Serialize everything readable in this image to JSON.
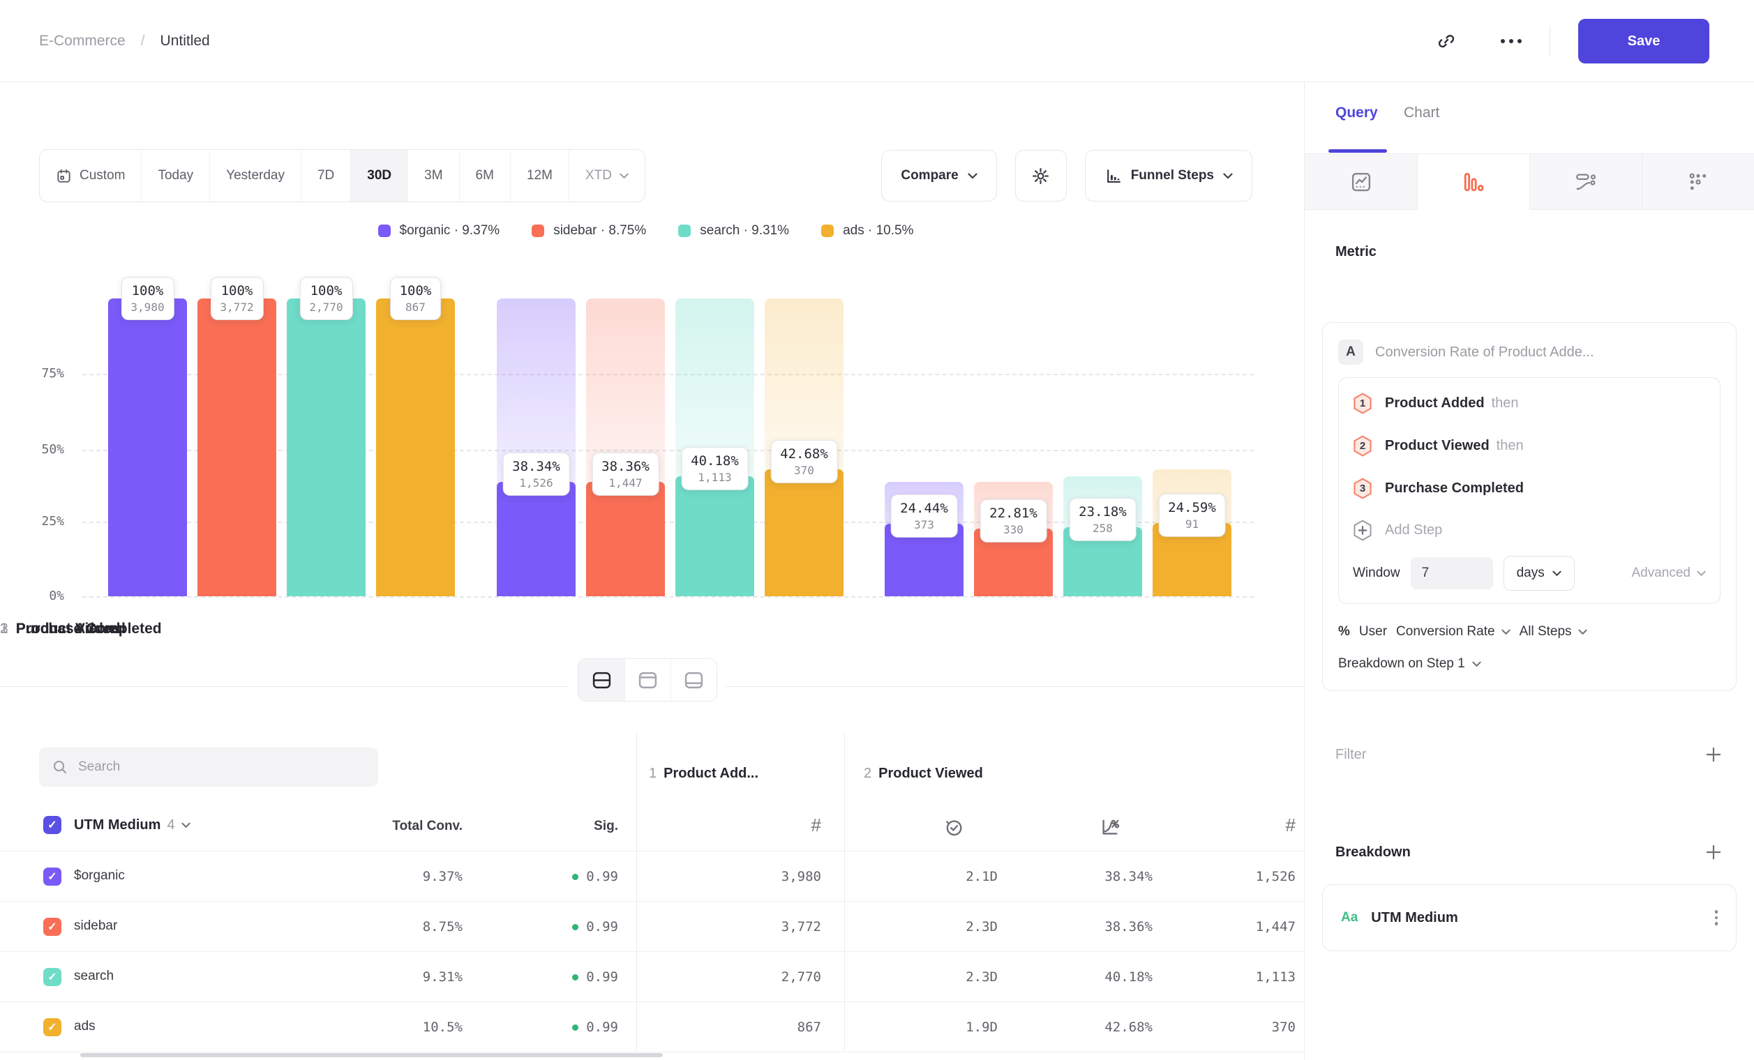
{
  "header": {
    "breadcrumb_parent": "E-Commerce",
    "breadcrumb_separator": "/",
    "breadcrumb_current": "Untitled",
    "save_label": "Save"
  },
  "toolbar": {
    "ranges": [
      "Custom",
      "Today",
      "Yesterday",
      "7D",
      "30D",
      "3M",
      "6M",
      "12M",
      "XTD"
    ],
    "selected_range": "30D",
    "compare_label": "Compare",
    "view_selector_label": "Funnel Steps"
  },
  "chart_data": {
    "type": "funnel_bar",
    "title": "",
    "y_axis": {
      "ticks": [
        "75%",
        "50%",
        "25%",
        "0%"
      ],
      "max_pct": 100,
      "gridlines": true
    },
    "series": [
      {
        "name": "$organic",
        "color": "#7A5AF8",
        "ghost": "rgba(122,90,248,0.30)",
        "legend": "$organic · 9.37%",
        "overall_conversion_pct": 9.37
      },
      {
        "name": "sidebar",
        "color": "#F96E55",
        "ghost": "rgba(249,110,85,0.26)",
        "legend": "sidebar · 8.75%",
        "overall_conversion_pct": 8.75
      },
      {
        "name": "search",
        "color": "#6FDCC8",
        "ghost": "rgba(111,220,200,0.30)",
        "legend": "search · 9.31%",
        "overall_conversion_pct": 9.31
      },
      {
        "name": "ads",
        "color": "#F2B02F",
        "ghost": "rgba(242,176,47,0.24)",
        "legend": "ads · 10.5%",
        "overall_conversion_pct": 10.5
      }
    ],
    "steps": [
      {
        "index": "1",
        "label": "Product Added",
        "values": [
          {
            "pct": 100,
            "pct_label": "100%",
            "count_label": "3,980"
          },
          {
            "pct": 100,
            "pct_label": "100%",
            "count_label": "3,772"
          },
          {
            "pct": 100,
            "pct_label": "100%",
            "count_label": "2,770"
          },
          {
            "pct": 100,
            "pct_label": "100%",
            "count_label": "867"
          }
        ]
      },
      {
        "index": "2",
        "label": "Product Viewed",
        "values": [
          {
            "pct": 38.34,
            "pct_label": "38.34%",
            "count_label": "1,526"
          },
          {
            "pct": 38.36,
            "pct_label": "38.36%",
            "count_label": "1,447"
          },
          {
            "pct": 40.18,
            "pct_label": "40.18%",
            "count_label": "1,113"
          },
          {
            "pct": 42.68,
            "pct_label": "42.68%",
            "count_label": "370"
          }
        ]
      },
      {
        "index": "3",
        "label": "Purchase Completed",
        "values": [
          {
            "pct": 24.44,
            "pct_label": "24.44%",
            "count_label": "373"
          },
          {
            "pct": 22.81,
            "pct_label": "22.81%",
            "count_label": "330"
          },
          {
            "pct": 23.18,
            "pct_label": "23.18%",
            "count_label": "258"
          },
          {
            "pct": 24.59,
            "pct_label": "24.59%",
            "count_label": "91"
          }
        ]
      }
    ]
  },
  "table": {
    "search_placeholder": "Search",
    "breakdown_header": {
      "label": "UTM Medium",
      "count": "4"
    },
    "columns": {
      "total_conv": "Total Conv.",
      "sig": "Sig."
    },
    "step_groups": [
      {
        "num": "1",
        "label": "Product Add..."
      },
      {
        "num": "2",
        "label": "Product Viewed"
      }
    ],
    "rows": [
      {
        "name": "$organic",
        "color": "#7A5AF8",
        "total_conv": "9.37%",
        "sig": "0.99",
        "step1_count": "3,980",
        "avg_time": "2.1D",
        "conv_rate": "38.34%",
        "step2_count": "1,526"
      },
      {
        "name": "sidebar",
        "color": "#F96E55",
        "total_conv": "8.75%",
        "sig": "0.99",
        "step1_count": "3,772",
        "avg_time": "2.3D",
        "conv_rate": "38.36%",
        "step2_count": "1,447"
      },
      {
        "name": "search",
        "color": "#6FDCC8",
        "total_conv": "9.31%",
        "sig": "0.99",
        "step1_count": "2,770",
        "avg_time": "2.3D",
        "conv_rate": "40.18%",
        "step2_count": "1,113"
      },
      {
        "name": "ads",
        "color": "#F2B02F",
        "total_conv": "10.5%",
        "sig": "0.99",
        "step1_count": "867",
        "avg_time": "1.9D",
        "conv_rate": "42.68%",
        "step2_count": "370"
      }
    ]
  },
  "query_panel": {
    "tabs": {
      "query": "Query",
      "chart": "Chart"
    },
    "active_tab": "Query",
    "metric_heading": "Metric",
    "metric": {
      "badge": "A",
      "summary": "Conversion Rate of Product Adde..."
    },
    "steps": [
      {
        "num": "1",
        "label": "Product Added",
        "suffix": "then"
      },
      {
        "num": "2",
        "label": "Product Viewed",
        "suffix": "then"
      },
      {
        "num": "3",
        "label": "Purchase Completed",
        "suffix": ""
      }
    ],
    "add_step_label": "Add Step",
    "window": {
      "label": "Window",
      "value": "7",
      "unit": "days",
      "advanced_label": "Advanced"
    },
    "measure": {
      "symbol": "%",
      "entity": "User",
      "metric": "Conversion Rate",
      "scope": "All Steps"
    },
    "breakdown_on_label": "Breakdown on Step 1",
    "filter": {
      "label": "Filter"
    },
    "breakdown": {
      "label": "Breakdown",
      "item": {
        "type_badge": "Aa",
        "label": "UTM Medium"
      }
    }
  },
  "colors": {
    "accent": "#4F44DB",
    "funnel_tab_icon": "#F96B4C",
    "sig_green": "#2FB574",
    "type_badge_green": "#3FBF84"
  }
}
